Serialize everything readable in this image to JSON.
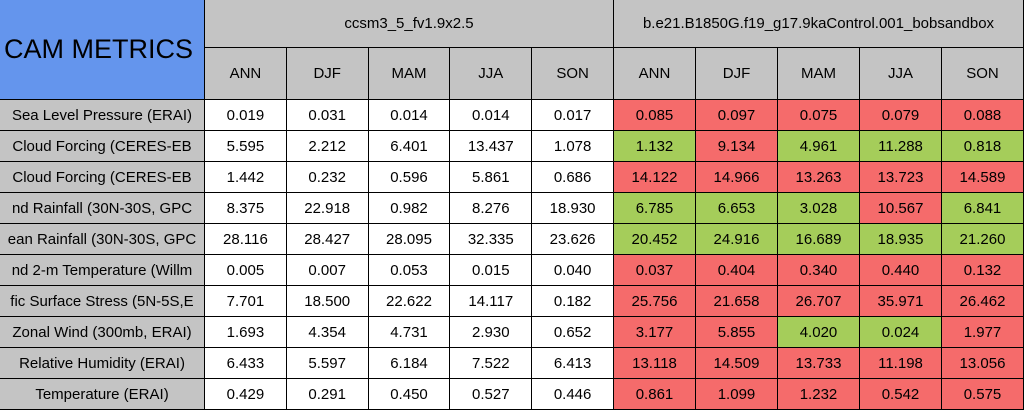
{
  "header": {
    "title": "CAM METRICS",
    "groups": [
      "ccsm3_5_fv1.9x2.5",
      "b.e21.B1850G.f19_g17.9kaControl.001_bobsandbox"
    ],
    "seasons": [
      "ANN",
      "DJF",
      "MAM",
      "JJA",
      "SON"
    ]
  },
  "rows": [
    {
      "label": "Sea Level Pressure (ERAI)",
      "values": [
        "0.019",
        "0.031",
        "0.014",
        "0.014",
        "0.017"
      ],
      "compare": [
        "0.085",
        "0.097",
        "0.075",
        "0.079",
        "0.088"
      ],
      "colors": [
        "#f56b6b",
        "#f56b6b",
        "#f56b6b",
        "#f56b6b",
        "#f56b6b"
      ]
    },
    {
      "label": "Cloud Forcing (CERES-EB",
      "values": [
        "5.595",
        "2.212",
        "6.401",
        "13.437",
        "1.078"
      ],
      "compare": [
        "1.132",
        "9.134",
        "4.961",
        "11.288",
        "0.818"
      ],
      "colors": [
        "#a5cd5a",
        "#f56b6b",
        "#a5cd5a",
        "#a5cd5a",
        "#a5cd5a"
      ]
    },
    {
      "label": "Cloud Forcing (CERES-EB",
      "values": [
        "1.442",
        "0.232",
        "0.596",
        "5.861",
        "0.686"
      ],
      "compare": [
        "14.122",
        "14.966",
        "13.263",
        "13.723",
        "14.589"
      ],
      "colors": [
        "#f56b6b",
        "#f56b6b",
        "#f56b6b",
        "#f56b6b",
        "#f56b6b"
      ]
    },
    {
      "label": "nd Rainfall (30N-30S, GPC",
      "values": [
        "8.375",
        "22.918",
        "0.982",
        "8.276",
        "18.930"
      ],
      "compare": [
        "6.785",
        "6.653",
        "3.028",
        "10.567",
        "6.841"
      ],
      "colors": [
        "#a5cd5a",
        "#a5cd5a",
        "#a5cd5a",
        "#f56b6b",
        "#a5cd5a"
      ]
    },
    {
      "label": "ean Rainfall (30N-30S, GPC",
      "values": [
        "28.116",
        "28.427",
        "28.095",
        "32.335",
        "23.626"
      ],
      "compare": [
        "20.452",
        "24.916",
        "16.689",
        "18.935",
        "21.260"
      ],
      "colors": [
        "#a5cd5a",
        "#a5cd5a",
        "#a5cd5a",
        "#a5cd5a",
        "#a5cd5a"
      ]
    },
    {
      "label": "nd 2-m Temperature (Willm",
      "values": [
        "0.005",
        "0.007",
        "0.053",
        "0.015",
        "0.040"
      ],
      "compare": [
        "0.037",
        "0.404",
        "0.340",
        "0.440",
        "0.132"
      ],
      "colors": [
        "#f56b6b",
        "#f56b6b",
        "#f56b6b",
        "#f56b6b",
        "#f56b6b"
      ]
    },
    {
      "label": "fic Surface Stress (5N-5S,E",
      "values": [
        "7.701",
        "18.500",
        "22.622",
        "14.117",
        "0.182"
      ],
      "compare": [
        "25.756",
        "21.658",
        "26.707",
        "35.971",
        "26.462"
      ],
      "colors": [
        "#f56b6b",
        "#f56b6b",
        "#f56b6b",
        "#f56b6b",
        "#f56b6b"
      ]
    },
    {
      "label": "Zonal Wind (300mb, ERAI)",
      "values": [
        "1.693",
        "4.354",
        "4.731",
        "2.930",
        "0.652"
      ],
      "compare": [
        "3.177",
        "5.855",
        "4.020",
        "0.024",
        "1.977"
      ],
      "colors": [
        "#f56b6b",
        "#f56b6b",
        "#a5cd5a",
        "#a5cd5a",
        "#f56b6b"
      ]
    },
    {
      "label": "Relative Humidity (ERAI)",
      "values": [
        "6.433",
        "5.597",
        "6.184",
        "7.522",
        "6.413"
      ],
      "compare": [
        "13.118",
        "14.509",
        "13.733",
        "11.198",
        "13.056"
      ],
      "colors": [
        "#f56b6b",
        "#f56b6b",
        "#f56b6b",
        "#f56b6b",
        "#f56b6b"
      ]
    },
    {
      "label": "Temperature (ERAI)",
      "values": [
        "0.429",
        "0.291",
        "0.450",
        "0.527",
        "0.446"
      ],
      "compare": [
        "0.861",
        "1.099",
        "1.232",
        "0.542",
        "0.575"
      ],
      "colors": [
        "#f56b6b",
        "#f56b6b",
        "#f56b6b",
        "#f56b6b",
        "#f56b6b"
      ]
    }
  ]
}
